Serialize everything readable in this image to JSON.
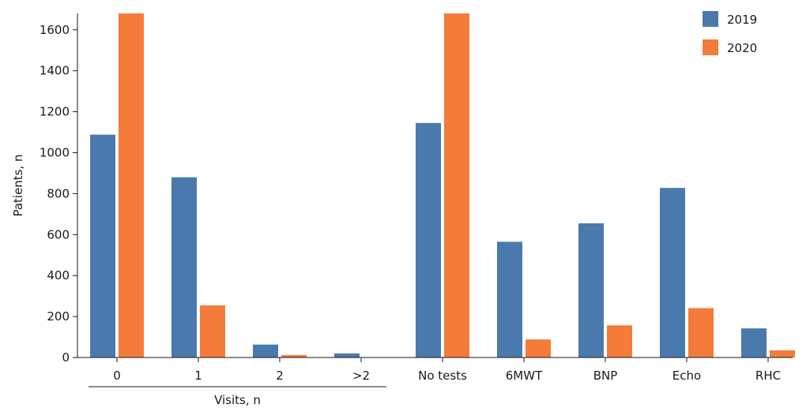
{
  "chart_data": {
    "type": "bar",
    "categories": [
      "0",
      "1",
      "2",
      ">2",
      "No tests",
      "6MWT",
      "BNP",
      "Echo",
      "RHC"
    ],
    "series": [
      {
        "name": "2019",
        "color": "#4a7aad",
        "values": [
          1088,
          880,
          63,
          20,
          1145,
          565,
          655,
          828,
          142
        ]
      },
      {
        "name": "2020",
        "color": "#f47b3a",
        "values": [
          1680,
          254,
          12,
          0,
          1680,
          88,
          157,
          241,
          35
        ]
      }
    ],
    "y_ticks": [
      0,
      200,
      400,
      600,
      800,
      1000,
      1200,
      1400,
      1600
    ],
    "ylim": [
      0,
      1680
    ],
    "ylabel": "Patients, n",
    "group_label": {
      "text": "Visits, n",
      "categories": [
        "0",
        "1",
        "2",
        ">2"
      ]
    },
    "legend_position": "top-right",
    "grid": false
  }
}
